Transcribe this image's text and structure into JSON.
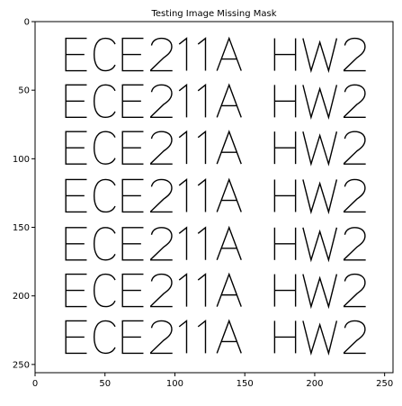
{
  "chart_data": {
    "type": "image",
    "title": "Testing Image Missing Mask",
    "image_width": 256,
    "image_height": 256,
    "xlim": [
      0,
      256
    ],
    "ylim": [
      256,
      0
    ],
    "x_ticks": [
      0,
      50,
      100,
      150,
      200,
      250
    ],
    "y_ticks": [
      0,
      50,
      100,
      150,
      200,
      250
    ],
    "grid": false,
    "colormap": "gray",
    "content": {
      "text": "ECE211A HW2",
      "repeat_rows": 7,
      "row_centers_y": [
        24,
        58,
        92,
        127,
        162,
        196,
        230
      ],
      "left_x": 22,
      "right_x": 236
    }
  }
}
